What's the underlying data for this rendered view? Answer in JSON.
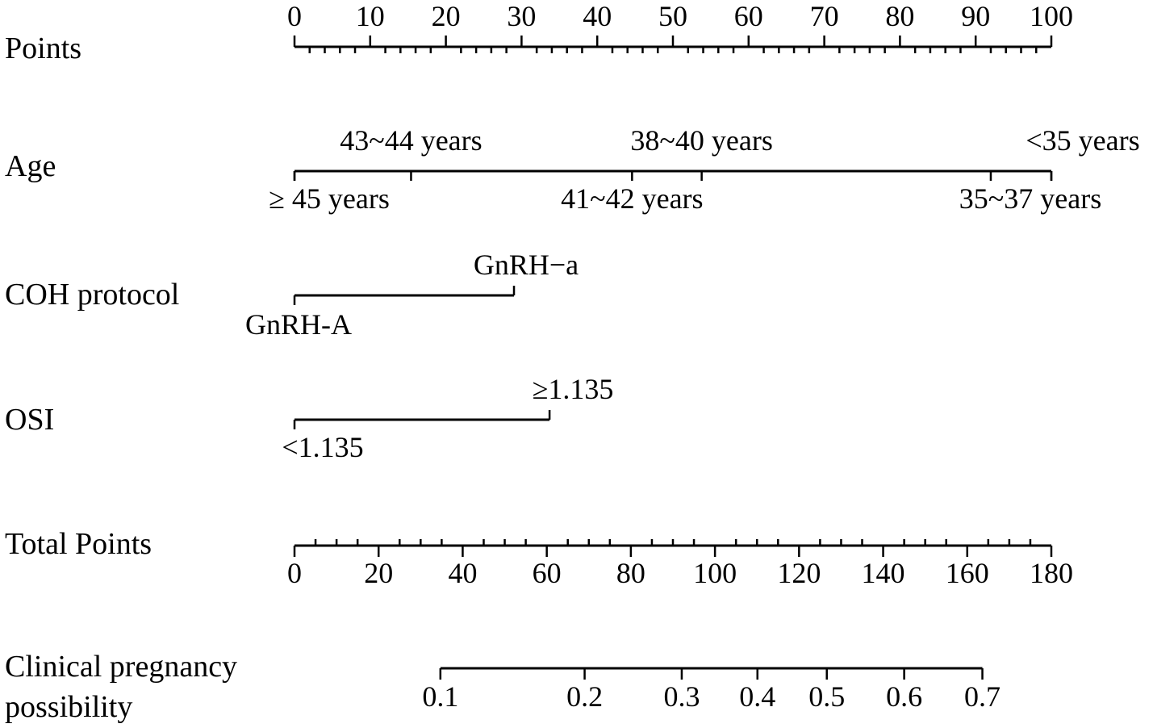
{
  "chart_data": {
    "type": "nomogram",
    "scales": [
      {
        "id": "points",
        "label": "Points",
        "min": 0,
        "max": 100,
        "major_ticks": [
          0,
          10,
          20,
          30,
          40,
          50,
          60,
          70,
          80,
          90,
          100
        ],
        "tick_labels": [
          "0",
          "10",
          "20",
          "30",
          "40",
          "50",
          "60",
          "70",
          "80",
          "90",
          "100"
        ],
        "minor_step": 2,
        "labels_position": "above"
      },
      {
        "id": "age",
        "label": "Age",
        "levels": [
          {
            "label": "≥ 45 years",
            "points": 0,
            "side": "below"
          },
          {
            "label": "43~44 years",
            "points": 15.4,
            "side": "above"
          },
          {
            "label": "41~42 years",
            "points": 44.6,
            "side": "below"
          },
          {
            "label": "38~40 years",
            "points": 53.8,
            "side": "above"
          },
          {
            "label": "35~37 years",
            "points": 92,
            "side": "below"
          },
          {
            "label": "<35 years",
            "points": 100,
            "side": "above"
          }
        ]
      },
      {
        "id": "coh",
        "label": "COH protocol",
        "levels": [
          {
            "label": "GnRH-A",
            "points": 0,
            "side": "below"
          },
          {
            "label": "GnRH−a",
            "points": 29,
            "side": "above"
          }
        ]
      },
      {
        "id": "osi",
        "label": "OSI",
        "levels": [
          {
            "label": "<1.135",
            "points": 0,
            "side": "below"
          },
          {
            "label": "≥1.135",
            "points": 33.7,
            "side": "above"
          }
        ]
      },
      {
        "id": "total",
        "label": "Total Points",
        "min": 0,
        "max": 180,
        "major_ticks": [
          0,
          20,
          40,
          60,
          80,
          100,
          120,
          140,
          160,
          180
        ],
        "tick_labels": [
          "0",
          "20",
          "40",
          "60",
          "80",
          "100",
          "120",
          "140",
          "160",
          "180"
        ],
        "minor_step": 5,
        "labels_position": "below"
      },
      {
        "id": "prob",
        "label": "Clinical pregnancy possibility",
        "label_lines": [
          "Clinical pregnancy",
          "possibility"
        ],
        "ticks": [
          {
            "label": "0.1",
            "total_points": 34.7
          },
          {
            "label": "0.2",
            "total_points": 69.0
          },
          {
            "label": "0.3",
            "total_points": 92.1
          },
          {
            "label": "0.4",
            "total_points": 110.1
          },
          {
            "label": "0.5",
            "total_points": 126.6
          },
          {
            "label": "0.6",
            "total_points": 145.0
          },
          {
            "label": "0.7",
            "total_points": 163.6
          }
        ],
        "labels_position": "below"
      }
    ]
  }
}
